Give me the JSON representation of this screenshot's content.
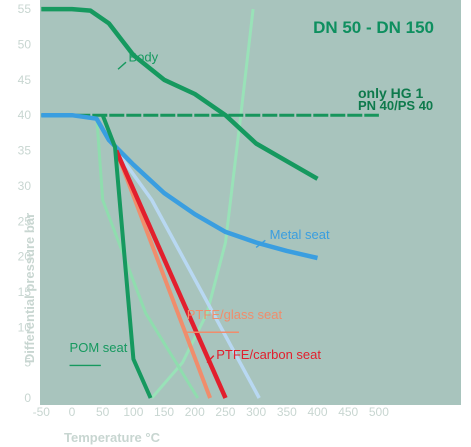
{
  "chart_data": {
    "type": "line",
    "title": "DN 50 - DN 150",
    "xlabel": "Temperature °C",
    "ylabel": "Differential pressure bar",
    "xlim": [
      -50,
      500
    ],
    "ylim": [
      0,
      55
    ],
    "xticks": [
      -50,
      0,
      50,
      100,
      150,
      200,
      250,
      300,
      350,
      400,
      450,
      500
    ],
    "yticks": [
      0,
      5,
      10,
      15,
      20,
      25,
      30,
      35,
      40,
      45,
      50,
      55
    ],
    "grid": false,
    "colors": {
      "background": "#a8c4bd",
      "tick_text": "#c8d6d1",
      "title": "#0e8f5f"
    },
    "annotation": {
      "line1": "only HG 1",
      "line2": "PN 40/PS 40",
      "color": "#0e7a4c"
    },
    "series": [
      {
        "key": "body",
        "name": "Body",
        "color": "#16995f",
        "width": 4.5,
        "x": [
          -50,
          0,
          30,
          60,
          100,
          150,
          200,
          250,
          300,
          350,
          400
        ],
        "y": [
          55,
          55,
          54.8,
          53,
          48.5,
          45,
          43,
          40,
          36,
          33.5,
          31
        ],
        "label": {
          "x": 92,
          "y": 47.6,
          "lx": [
            75,
            88
          ],
          "ly": [
            46.5,
            47.5
          ]
        }
      },
      {
        "key": "limit",
        "name": "",
        "color": "#17955c",
        "width": 3,
        "dashed": true,
        "x": [
          -50,
          500
        ],
        "y": [
          40,
          40
        ]
      },
      {
        "key": "metal",
        "name": "Metal seat",
        "color": "#3a9ee0",
        "width": 4.5,
        "x": [
          -50,
          0,
          40,
          60,
          100,
          150,
          200,
          250,
          300,
          350,
          400
        ],
        "y": [
          40,
          40,
          39.5,
          36.5,
          33,
          29,
          26,
          23.5,
          22,
          20.8,
          19.8
        ],
        "label": {
          "x": 322,
          "y": 22.5,
          "lx": [
            300,
            315
          ],
          "ly": [
            21.3,
            22.3
          ]
        }
      },
      {
        "key": "pom",
        "name": "POM seat",
        "color": "#16995f",
        "width": 4,
        "x": [
          50,
          70,
          100,
          128
        ],
        "y": [
          40,
          35.5,
          5.5,
          0
        ],
        "label": {
          "x": -4,
          "y": 6.5,
          "lx": [
            -4,
            47
          ],
          "ly": [
            4.6,
            4.6
          ]
        }
      },
      {
        "key": "ptfe_glass",
        "name": "PTFE/glass seat",
        "color": "#f08d6c",
        "width": 4,
        "x": [
          72,
          225
        ],
        "y": [
          35,
          0
        ],
        "label": {
          "x": 187,
          "y": 11.2,
          "lx": [
            187,
            272
          ],
          "ly": [
            9.3,
            9.3
          ]
        }
      },
      {
        "key": "ptfe_carbon",
        "name": "PTFE/carbon seat",
        "color": "#e21f2d",
        "width": 4.5,
        "x": [
          72,
          250
        ],
        "y": [
          35,
          0
        ],
        "label": {
          "x": 235,
          "y": 5.5,
          "lx": [
            220,
            231
          ],
          "ly": [
            5,
            6
          ]
        }
      },
      {
        "key": "faint_green",
        "name": "",
        "color": "#8fddae",
        "width": 3,
        "x": [
          40,
          50,
          120,
          205
        ],
        "y": [
          40,
          28,
          12,
          0
        ]
      },
      {
        "key": "faint_blue",
        "name": "",
        "color": "#b8d8f2",
        "width": 3.5,
        "x": [
          72,
          130,
          305
        ],
        "y": [
          35,
          28,
          0
        ]
      },
      {
        "key": "faint_rise",
        "name": "",
        "color": "#99e2b8",
        "width": 3,
        "x": [
          130,
          180,
          220,
          250,
          275,
          295
        ],
        "y": [
          0,
          5,
          12,
          22,
          40,
          55
        ]
      }
    ]
  }
}
